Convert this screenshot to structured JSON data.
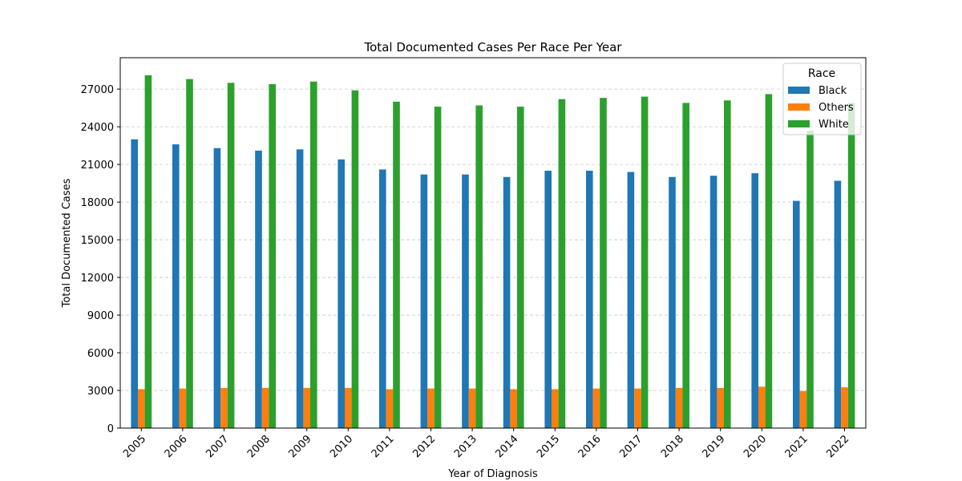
{
  "chart_data": {
    "type": "bar",
    "title": "Total Documented Cases Per Race Per Year",
    "xlabel": "Year of Diagnosis",
    "ylabel": "Total Documented Cases",
    "ylim": [
      0,
      29500
    ],
    "yticks": [
      0,
      3000,
      6000,
      9000,
      12000,
      15000,
      18000,
      21000,
      24000,
      27000
    ],
    "grid": "horizontal dashed",
    "legend": {
      "title": "Race",
      "placement": "top-right"
    },
    "categories": [
      "2005",
      "2006",
      "2007",
      "2008",
      "2009",
      "2010",
      "2011",
      "2012",
      "2013",
      "2014",
      "2015",
      "2016",
      "2017",
      "2018",
      "2019",
      "2020",
      "2021",
      "2022"
    ],
    "series": [
      {
        "name": "Black",
        "color": "#1f77b4",
        "values": [
          23000,
          22600,
          22300,
          22100,
          22200,
          21400,
          20600,
          20200,
          20200,
          20000,
          20500,
          20500,
          20400,
          20000,
          20100,
          20300,
          18100,
          19700
        ]
      },
      {
        "name": "Others",
        "color": "#ff7f0e",
        "values": [
          3100,
          3150,
          3200,
          3200,
          3200,
          3200,
          3100,
          3150,
          3150,
          3100,
          3100,
          3150,
          3150,
          3200,
          3200,
          3300,
          2950,
          3250
        ]
      },
      {
        "name": "White",
        "color": "#2ca02c",
        "values": [
          28100,
          27800,
          27500,
          27400,
          27600,
          26900,
          26000,
          25600,
          25700,
          25600,
          26200,
          26300,
          26400,
          25900,
          26100,
          26600,
          23700,
          25900
        ]
      }
    ]
  }
}
